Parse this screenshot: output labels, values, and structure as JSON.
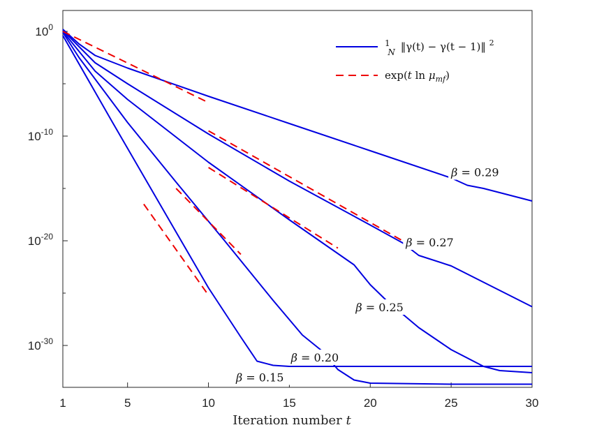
{
  "chart_data": {
    "type": "line",
    "title": "",
    "xlabel": "Iteration number t",
    "ylabel": "",
    "yscale": "log",
    "xlim": [
      1,
      30
    ],
    "ylim_exponent": [
      -34,
      2
    ],
    "xticks": [
      1,
      5,
      10,
      15,
      20,
      25,
      30
    ],
    "yticks": [
      {
        "exp": 0,
        "label": "10",
        "sup": "0"
      },
      {
        "exp": -10,
        "label": "10",
        "sup": "-10"
      },
      {
        "exp": -20,
        "label": "10",
        "sup": "-20"
      },
      {
        "exp": -30,
        "label": "10",
        "sup": "-30"
      }
    ],
    "grid": false,
    "legend_position": "top-right",
    "legend": [
      {
        "name": "1/N ||γ(t) − γ(t − 1)||²",
        "style": "solid",
        "color": "#0000e0"
      },
      {
        "name": "exp(t ln μ_mf)",
        "style": "dashed",
        "color": "#ee0000"
      }
    ],
    "series": [
      {
        "name": "β = 0.29",
        "kind": "simulation",
        "color": "#0000e0",
        "points": [
          [
            1,
            0.2
          ],
          [
            2,
            -1.2
          ],
          [
            3,
            -2.3
          ],
          [
            4,
            -2.9
          ],
          [
            5,
            -3.5
          ],
          [
            10,
            -6.2
          ],
          [
            15,
            -8.8
          ],
          [
            20,
            -11.4
          ],
          [
            25,
            -14.0
          ],
          [
            26,
            -14.7
          ],
          [
            27,
            -15.0
          ],
          [
            30,
            -16.2
          ]
        ]
      },
      {
        "name": "β = 0.27",
        "kind": "simulation",
        "color": "#0000e0",
        "points": [
          [
            1,
            0.1
          ],
          [
            3,
            -3.0
          ],
          [
            5,
            -5.0
          ],
          [
            10,
            -9.8
          ],
          [
            15,
            -14.3
          ],
          [
            20,
            -18.5
          ],
          [
            22,
            -20.2
          ],
          [
            23,
            -21.4
          ],
          [
            25,
            -22.4
          ],
          [
            30,
            -26.3
          ]
        ]
      },
      {
        "name": "β = 0.25",
        "kind": "simulation",
        "color": "#0000e0",
        "points": [
          [
            1,
            0.0
          ],
          [
            3,
            -3.8
          ],
          [
            5,
            -6.5
          ],
          [
            10,
            -12.5
          ],
          [
            15,
            -18.0
          ],
          [
            19,
            -22.3
          ],
          [
            20,
            -24.2
          ],
          [
            21,
            -25.7
          ],
          [
            23,
            -28.3
          ],
          [
            25,
            -30.4
          ],
          [
            27,
            -32.0
          ],
          [
            28,
            -32.4
          ],
          [
            30,
            -32.6
          ]
        ]
      },
      {
        "name": "β = 0.20",
        "kind": "simulation",
        "color": "#0000e0",
        "points": [
          [
            1,
            -0.1
          ],
          [
            2,
            -2.5
          ],
          [
            5,
            -8.7
          ],
          [
            8,
            -14.4
          ],
          [
            11,
            -20.0
          ],
          [
            14,
            -25.7
          ],
          [
            15.8,
            -29.0
          ],
          [
            17,
            -30.5
          ],
          [
            18,
            -32.3
          ],
          [
            19,
            -33.3
          ],
          [
            20,
            -33.6
          ],
          [
            25,
            -33.7
          ],
          [
            30,
            -33.7
          ]
        ]
      },
      {
        "name": "β = 0.15",
        "kind": "simulation",
        "color": "#0000e0",
        "points": [
          [
            1,
            -0.4
          ],
          [
            4,
            -8.5
          ],
          [
            7,
            -16.5
          ],
          [
            10,
            -24.5
          ],
          [
            12,
            -29.2
          ],
          [
            13,
            -31.5
          ],
          [
            14,
            -31.9
          ],
          [
            15,
            -32.0
          ],
          [
            20,
            -32.0
          ],
          [
            30,
            -32.0
          ]
        ]
      },
      {
        "name": "β = 0.29 theory",
        "kind": "theory",
        "color": "#ee0000",
        "points": [
          [
            1,
            0.0
          ],
          [
            10,
            -6.8
          ]
        ]
      },
      {
        "name": "β = 0.27 theory",
        "kind": "theory",
        "color": "#ee0000",
        "points": [
          [
            10,
            -9.5
          ],
          [
            22,
            -20.0
          ]
        ]
      },
      {
        "name": "β = 0.25 theory",
        "kind": "theory",
        "color": "#ee0000",
        "points": [
          [
            10,
            -13.0
          ],
          [
            18,
            -20.7
          ]
        ]
      },
      {
        "name": "β = 0.20 theory",
        "kind": "theory",
        "color": "#ee0000",
        "points": [
          [
            8,
            -15.0
          ],
          [
            12,
            -21.3
          ]
        ]
      },
      {
        "name": "β = 0.15 theory",
        "kind": "theory",
        "color": "#ee0000",
        "points": [
          [
            6,
            -16.5
          ],
          [
            10,
            -25.2
          ]
        ]
      }
    ],
    "annotations": [
      {
        "symbol": "β",
        "text": " = 0.29",
        "at": [
          25,
          -13.7
        ]
      },
      {
        "symbol": "β",
        "text": " = 0.27",
        "at": [
          22.2,
          -20.4
        ]
      },
      {
        "symbol": "β",
        "text": " = 0.25",
        "at": [
          19.1,
          -26.6
        ]
      },
      {
        "symbol": "β",
        "text": " = 0.20",
        "at": [
          15.1,
          -31.4
        ]
      },
      {
        "symbol": "β",
        "text": " = 0.15",
        "at": [
          11.7,
          -33.3
        ]
      }
    ]
  }
}
